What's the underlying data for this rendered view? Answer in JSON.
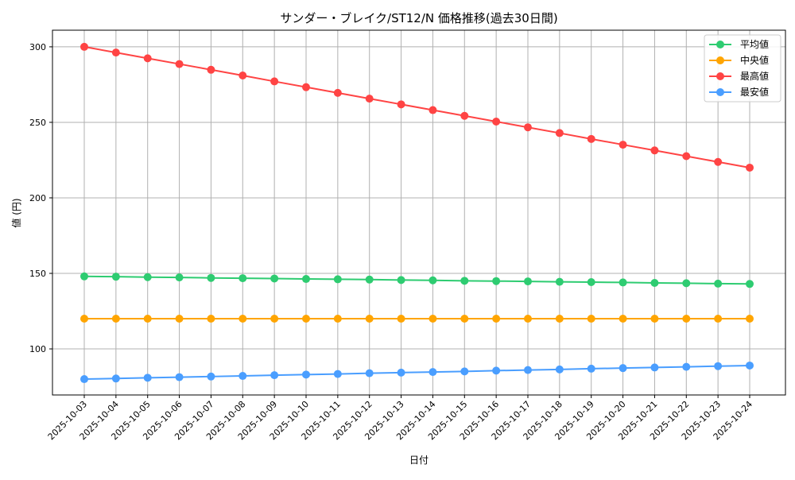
{
  "chart_data": {
    "type": "line",
    "title": "サンダー・ブレイク/ST12/N 価格推移(過去30日間)",
    "xlabel": "日付",
    "ylabel": "値 (円)",
    "ylim": [
      69.5,
      311
    ],
    "yticks": [
      100,
      150,
      200,
      250,
      300
    ],
    "grid": true,
    "legend_position": "top-right",
    "x": [
      "2025-10-03",
      "2025-10-04",
      "2025-10-05",
      "2025-10-06",
      "2025-10-07",
      "2025-10-08",
      "2025-10-09",
      "2025-10-10",
      "2025-10-11",
      "2025-10-12",
      "2025-10-13",
      "2025-10-14",
      "2025-10-15",
      "2025-10-16",
      "2025-10-17",
      "2025-10-18",
      "2025-10-19",
      "2025-10-20",
      "2025-10-21",
      "2025-10-22",
      "2025-10-23",
      "2025-10-24"
    ],
    "series": [
      {
        "name": "平均値",
        "color": "#2ecc71",
        "values": [
          148,
          147.8,
          147.5,
          147.3,
          147.0,
          146.8,
          146.6,
          146.3,
          146.1,
          145.9,
          145.6,
          145.4,
          145.1,
          144.9,
          144.7,
          144.4,
          144.2,
          144.0,
          143.7,
          143.5,
          143.2,
          143.0
        ]
      },
      {
        "name": "中央値",
        "color": "#ffa500",
        "values": [
          120,
          120,
          120,
          120,
          120,
          120,
          120,
          120,
          120,
          120,
          120,
          120,
          120,
          120,
          120,
          120,
          120,
          120,
          120,
          120,
          120,
          120
        ]
      },
      {
        "name": "最高値",
        "color": "#ff4444",
        "values": [
          300,
          296.2,
          292.4,
          288.6,
          284.8,
          281.0,
          277.1,
          273.3,
          269.5,
          265.7,
          261.9,
          258.1,
          254.3,
          250.5,
          246.7,
          242.9,
          239.0,
          235.2,
          231.4,
          227.6,
          223.8,
          220
        ]
      },
      {
        "name": "最安値",
        "color": "#4a9eff",
        "values": [
          80,
          80.4,
          80.9,
          81.3,
          81.7,
          82.1,
          82.6,
          83.0,
          83.4,
          83.9,
          84.3,
          84.7,
          85.1,
          85.6,
          86.0,
          86.4,
          86.9,
          87.3,
          87.7,
          88.1,
          88.6,
          89.0
        ]
      }
    ]
  }
}
